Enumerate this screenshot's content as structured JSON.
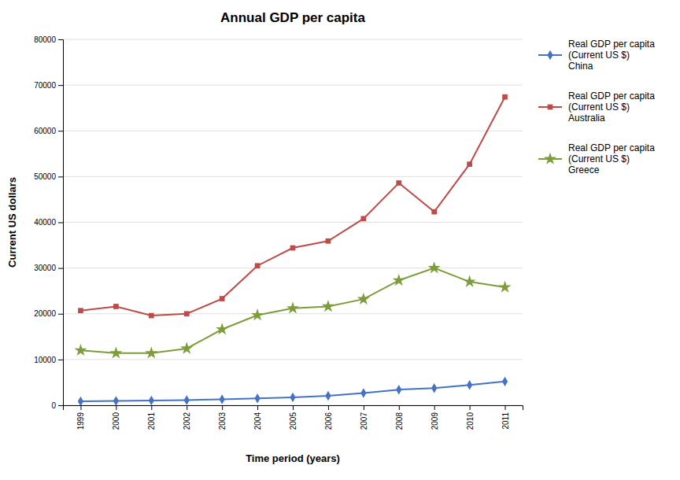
{
  "chart_data": {
    "type": "line",
    "title": "Annual GDP per capita",
    "xlabel": "Time period (years)",
    "ylabel": "Current US dollars",
    "x": [
      1999,
      2000,
      2001,
      2002,
      2003,
      2004,
      2005,
      2006,
      2007,
      2008,
      2009,
      2010,
      2011
    ],
    "xlim": [
      1998.5,
      2011.5
    ],
    "xticks": [
      1999,
      2000,
      2001,
      2002,
      2003,
      2004,
      2005,
      2006,
      2007,
      2008,
      2009,
      2010,
      2011
    ],
    "ylim": [
      0,
      80000
    ],
    "yticks": [
      0,
      10000,
      20000,
      30000,
      40000,
      50000,
      60000,
      70000,
      80000
    ],
    "grid": true,
    "legend": "right",
    "series": [
      {
        "name": "Real GDP per capita\n(Current US $)\nChina",
        "color": "#4472C4",
        "marker": "diamond",
        "values": [
          856,
          959,
          1042,
          1135,
          1274,
          1490,
          1731,
          2069,
          2651,
          3414,
          3749,
          4433,
          5184
        ]
      },
      {
        "name": "Real GDP per capita\n(Current US $)\nAustralia",
        "color": "#BE4B48",
        "marker": "square",
        "values": [
          20700,
          21600,
          19600,
          20000,
          23300,
          30500,
          34400,
          35900,
          40800,
          48600,
          42300,
          52700,
          67400
        ]
      },
      {
        "name": "Real GDP per capita\n(Current US $)\nGreece",
        "color": "#7D9D3A",
        "marker": "star",
        "values": [
          12000,
          11400,
          11400,
          12400,
          16600,
          19700,
          21200,
          21600,
          23200,
          27300,
          30000,
          27000,
          25800
        ]
      }
    ]
  }
}
